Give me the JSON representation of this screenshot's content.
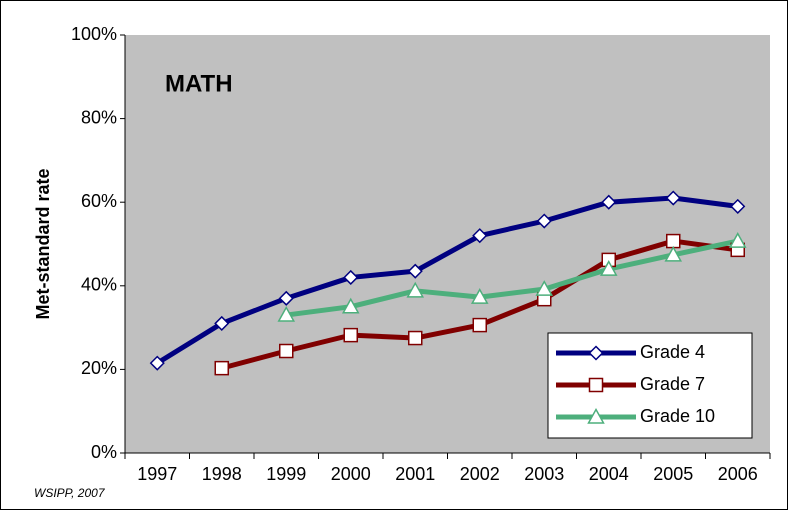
{
  "chart_data": {
    "type": "line",
    "title": "MATH",
    "ylabel": "Met-standard rate",
    "note": "WSIPP, 2007",
    "categories": [
      "1997",
      "1998",
      "1999",
      "2000",
      "2001",
      "2002",
      "2003",
      "2004",
      "2005",
      "2006"
    ],
    "series": [
      {
        "name": "Grade 4",
        "color": "#000080",
        "marker": "diamond",
        "values": [
          21.5,
          31,
          37,
          42,
          43.5,
          52,
          55.5,
          60,
          61,
          59
        ]
      },
      {
        "name": "Grade 7",
        "color": "#800000",
        "marker": "square",
        "values": [
          null,
          20.3,
          24.4,
          28.2,
          27.5,
          30.6,
          36.8,
          46.2,
          50.7,
          48.6
        ]
      },
      {
        "name": "Grade 10",
        "color": "#4daf7c",
        "marker": "triangle",
        "values": [
          null,
          null,
          33,
          35,
          38.8,
          37.3,
          39.2,
          44,
          47.4,
          50.7
        ]
      }
    ],
    "ylim": [
      0,
      100
    ],
    "yticks": [
      {
        "value": 0,
        "label": "0%"
      },
      {
        "value": 20,
        "label": "20%"
      },
      {
        "value": 40,
        "label": "40%"
      },
      {
        "value": 60,
        "label": "60%"
      },
      {
        "value": 80,
        "label": "80%"
      },
      {
        "value": 100,
        "label": "100%"
      }
    ],
    "plot_background": "#c0c0c0",
    "grid": false,
    "legend": "lower right"
  }
}
